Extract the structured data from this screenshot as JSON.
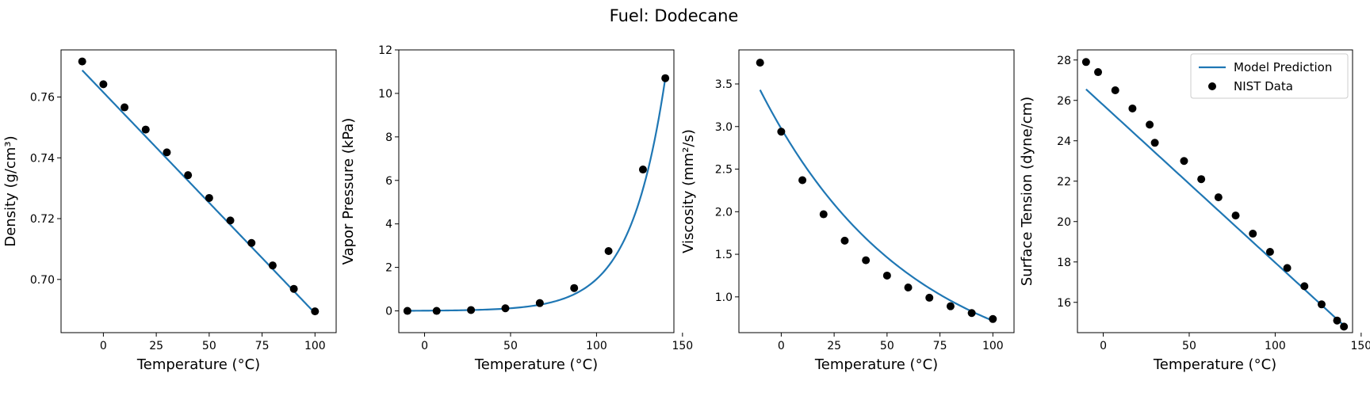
{
  "figure": {
    "title": "Fuel: Dodecane"
  },
  "colors": {
    "model": "#1f77b4",
    "nist": "#000000",
    "axes": "#000000"
  },
  "legend": {
    "placement": "upper-right",
    "on_chart": 4
  },
  "chart_data": [
    {
      "type": "line+scatter",
      "xlabel": "Temperature (°C)",
      "ylabel": "Density (g/cm³)",
      "xlim": [
        -20,
        110
      ],
      "ylim": [
        0.6825,
        0.7755
      ],
      "xticks": [
        0,
        25,
        50,
        75,
        100
      ],
      "yticks": [
        0.7,
        0.72,
        0.74,
        0.76
      ],
      "ytick_decimals": 2,
      "grid": false,
      "model": {
        "name": "Model Prediction",
        "kind": "linear",
        "x": [
          -10,
          100
        ],
        "y": [
          0.7688,
          0.6889
        ]
      },
      "nist": {
        "name": "NIST Data",
        "x": [
          -10,
          0,
          10,
          20,
          30,
          40,
          50,
          60,
          70,
          80,
          90,
          100
        ],
        "y": [
          0.7717,
          0.7642,
          0.7566,
          0.7493,
          0.7418,
          0.7343,
          0.7268,
          0.7194,
          0.712,
          0.7046,
          0.6969,
          0.6895
        ]
      }
    },
    {
      "type": "line+scatter",
      "xlabel": "Temperature (°C)",
      "ylabel": "Vapor Pressure (kPa)",
      "xlim": [
        -15,
        145
      ],
      "ylim": [
        -1,
        12
      ],
      "xticks": [
        0,
        50,
        100,
        150
      ],
      "yticks": [
        0,
        2,
        4,
        6,
        8,
        10,
        12
      ],
      "ytick_decimals": 0,
      "grid": false,
      "model": {
        "name": "Model Prediction",
        "kind": "exponential",
        "x": [
          -10,
          140
        ],
        "y": [
          0.0061,
          10.7
        ]
      },
      "nist": {
        "name": "NIST Data",
        "x": [
          -10,
          7,
          27,
          47,
          67,
          87,
          107,
          127,
          140
        ],
        "y": [
          0.0,
          0.0,
          0.04,
          0.12,
          0.36,
          1.05,
          2.75,
          6.5,
          10.7
        ]
      }
    },
    {
      "type": "line+scatter",
      "xlabel": "Temperature (°C)",
      "ylabel": "Viscosity (mm²/s)",
      "xlim": [
        -20,
        110
      ],
      "ylim": [
        0.58,
        3.9
      ],
      "xticks": [
        0,
        25,
        50,
        75,
        100
      ],
      "yticks": [
        1.0,
        1.5,
        2.0,
        2.5,
        3.0,
        3.5
      ],
      "ytick_decimals": 1,
      "grid": false,
      "model": {
        "name": "Model Prediction",
        "kind": "exponential",
        "x": [
          -10,
          100
        ],
        "y": [
          3.43,
          0.72
        ]
      },
      "nist": {
        "name": "NIST Data",
        "x": [
          -10,
          0,
          10,
          20,
          30,
          40,
          50,
          60,
          70,
          80,
          90,
          100
        ],
        "y": [
          3.75,
          2.94,
          2.37,
          1.97,
          1.66,
          1.43,
          1.25,
          1.11,
          0.99,
          0.89,
          0.81,
          0.74
        ]
      }
    },
    {
      "type": "line+scatter",
      "xlabel": "Temperature (°C)",
      "ylabel": "Surface Tension (dyne/cm)",
      "xlim": [
        -15,
        145
      ],
      "ylim": [
        14.5,
        28.5
      ],
      "xticks": [
        0,
        50,
        100,
        150
      ],
      "yticks": [
        16,
        18,
        20,
        22,
        24,
        26,
        28
      ],
      "ytick_decimals": 0,
      "grid": false,
      "model": {
        "name": "Model Prediction",
        "kind": "linear",
        "x": [
          -10,
          140
        ],
        "y": [
          26.55,
          14.85
        ]
      },
      "nist": {
        "name": "NIST Data",
        "x": [
          -10,
          -3,
          7,
          17,
          27,
          30,
          47,
          57,
          67,
          77,
          87,
          97,
          107,
          117,
          127,
          136,
          140
        ],
        "y": [
          27.9,
          27.4,
          26.5,
          25.6,
          24.8,
          23.9,
          23.0,
          22.1,
          21.2,
          20.3,
          19.4,
          18.5,
          17.7,
          16.8,
          15.9,
          15.1,
          14.8
        ]
      }
    }
  ]
}
